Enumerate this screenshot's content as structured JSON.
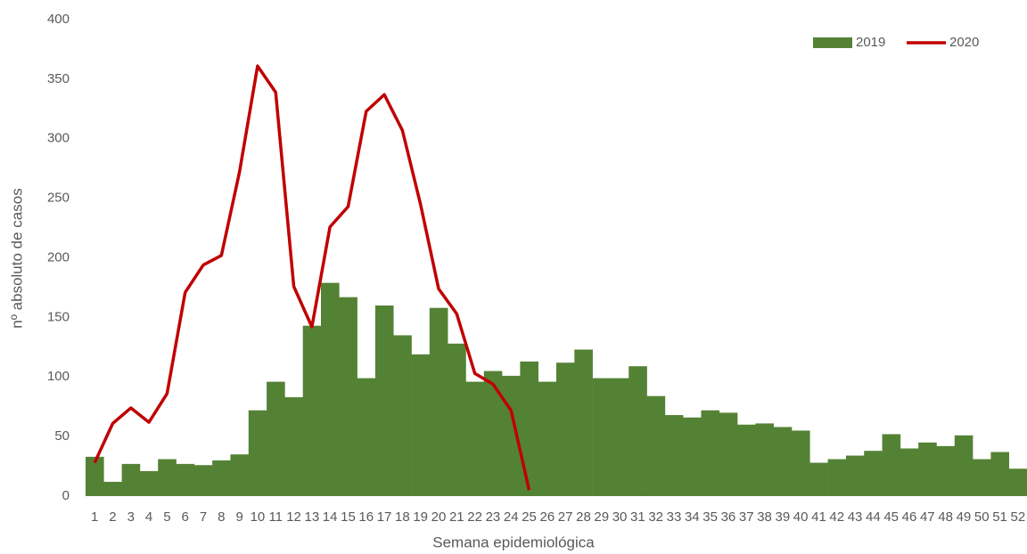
{
  "chart_data": {
    "type": "bar",
    "x_label": "Semana epidemiológica",
    "y_label": "nº absoluto de casos",
    "categories": [
      "1",
      "2",
      "3",
      "4",
      "5",
      "6",
      "7",
      "8",
      "9",
      "10",
      "11",
      "12",
      "13",
      "14",
      "15",
      "16",
      "17",
      "18",
      "19",
      "20",
      "21",
      "22",
      "23",
      "24",
      "25",
      "26",
      "27",
      "28",
      "29",
      "30",
      "31",
      "32",
      "33",
      "34",
      "35",
      "36",
      "37",
      "38",
      "39",
      "40",
      "41",
      "42",
      "43",
      "44",
      "45",
      "46",
      "47",
      "48",
      "49",
      "50",
      "51",
      "52"
    ],
    "series": [
      {
        "name": "2019",
        "type": "bar",
        "color": "#548235",
        "values": [
          33,
          12,
          27,
          21,
          31,
          27,
          26,
          30,
          35,
          72,
          96,
          83,
          143,
          179,
          167,
          99,
          160,
          135,
          119,
          158,
          128,
          96,
          105,
          101,
          113,
          96,
          112,
          123,
          99,
          99,
          109,
          84,
          68,
          66,
          72,
          70,
          60,
          61,
          58,
          55,
          28,
          31,
          34,
          38,
          52,
          40,
          45,
          42,
          51,
          31,
          37,
          23
        ]
      },
      {
        "name": "2020",
        "type": "line",
        "color": "#c00000",
        "values": [
          28,
          61,
          74,
          62,
          86,
          171,
          194,
          202,
          272,
          361,
          339,
          176,
          142,
          226,
          243,
          323,
          337,
          307,
          245,
          174,
          153,
          103,
          94,
          72,
          5,
          null,
          null,
          null,
          null,
          null,
          null,
          null,
          null,
          null,
          null,
          null,
          null,
          null,
          null,
          null,
          null,
          null,
          null,
          null,
          null,
          null,
          null,
          null,
          null,
          null,
          null,
          null
        ]
      }
    ],
    "ylim": [
      0,
      400
    ],
    "yticks": [
      0,
      50,
      100,
      150,
      200,
      250,
      300,
      350,
      400
    ],
    "grid": false,
    "legend": "top-right"
  }
}
